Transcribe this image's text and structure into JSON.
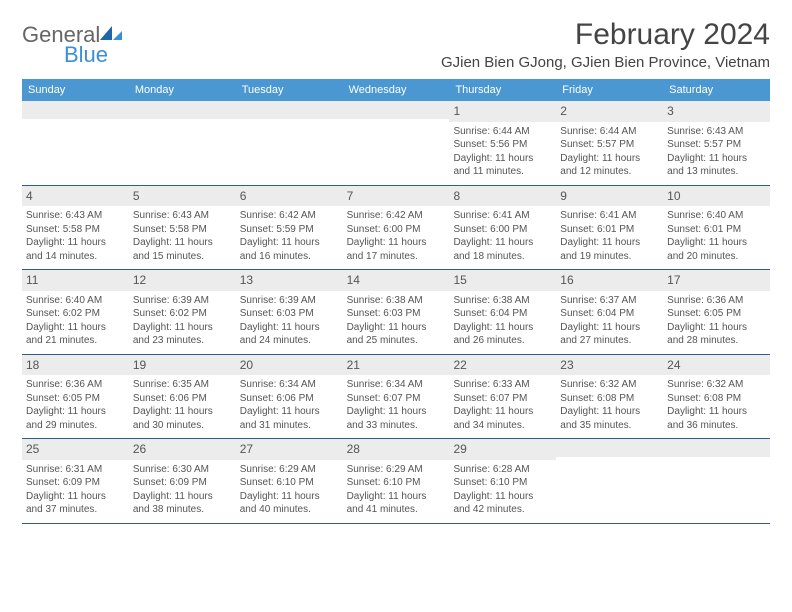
{
  "logo": {
    "part1": "General",
    "part2": "Blue"
  },
  "title": "February 2024",
  "location": "GJien Bien GJong, GJien Bien Province, Vietnam",
  "colors": {
    "header_bg": "#4a97d2",
    "header_text": "#ffffff",
    "week_divider": "#2f5e8a",
    "daynum_bg": "#ececec",
    "text": "#555555",
    "logo_gray": "#666666",
    "logo_blue": "#3b8fd4",
    "page_bg": "#ffffff"
  },
  "weekdays": [
    "Sunday",
    "Monday",
    "Tuesday",
    "Wednesday",
    "Thursday",
    "Friday",
    "Saturday"
  ],
  "weeks": [
    [
      null,
      null,
      null,
      null,
      {
        "num": "1",
        "sunrise": "Sunrise: 6:44 AM",
        "sunset": "Sunset: 5:56 PM",
        "dl1": "Daylight: 11 hours",
        "dl2": "and 11 minutes."
      },
      {
        "num": "2",
        "sunrise": "Sunrise: 6:44 AM",
        "sunset": "Sunset: 5:57 PM",
        "dl1": "Daylight: 11 hours",
        "dl2": "and 12 minutes."
      },
      {
        "num": "3",
        "sunrise": "Sunrise: 6:43 AM",
        "sunset": "Sunset: 5:57 PM",
        "dl1": "Daylight: 11 hours",
        "dl2": "and 13 minutes."
      }
    ],
    [
      {
        "num": "4",
        "sunrise": "Sunrise: 6:43 AM",
        "sunset": "Sunset: 5:58 PM",
        "dl1": "Daylight: 11 hours",
        "dl2": "and 14 minutes."
      },
      {
        "num": "5",
        "sunrise": "Sunrise: 6:43 AM",
        "sunset": "Sunset: 5:58 PM",
        "dl1": "Daylight: 11 hours",
        "dl2": "and 15 minutes."
      },
      {
        "num": "6",
        "sunrise": "Sunrise: 6:42 AM",
        "sunset": "Sunset: 5:59 PM",
        "dl1": "Daylight: 11 hours",
        "dl2": "and 16 minutes."
      },
      {
        "num": "7",
        "sunrise": "Sunrise: 6:42 AM",
        "sunset": "Sunset: 6:00 PM",
        "dl1": "Daylight: 11 hours",
        "dl2": "and 17 minutes."
      },
      {
        "num": "8",
        "sunrise": "Sunrise: 6:41 AM",
        "sunset": "Sunset: 6:00 PM",
        "dl1": "Daylight: 11 hours",
        "dl2": "and 18 minutes."
      },
      {
        "num": "9",
        "sunrise": "Sunrise: 6:41 AM",
        "sunset": "Sunset: 6:01 PM",
        "dl1": "Daylight: 11 hours",
        "dl2": "and 19 minutes."
      },
      {
        "num": "10",
        "sunrise": "Sunrise: 6:40 AM",
        "sunset": "Sunset: 6:01 PM",
        "dl1": "Daylight: 11 hours",
        "dl2": "and 20 minutes."
      }
    ],
    [
      {
        "num": "11",
        "sunrise": "Sunrise: 6:40 AM",
        "sunset": "Sunset: 6:02 PM",
        "dl1": "Daylight: 11 hours",
        "dl2": "and 21 minutes."
      },
      {
        "num": "12",
        "sunrise": "Sunrise: 6:39 AM",
        "sunset": "Sunset: 6:02 PM",
        "dl1": "Daylight: 11 hours",
        "dl2": "and 23 minutes."
      },
      {
        "num": "13",
        "sunrise": "Sunrise: 6:39 AM",
        "sunset": "Sunset: 6:03 PM",
        "dl1": "Daylight: 11 hours",
        "dl2": "and 24 minutes."
      },
      {
        "num": "14",
        "sunrise": "Sunrise: 6:38 AM",
        "sunset": "Sunset: 6:03 PM",
        "dl1": "Daylight: 11 hours",
        "dl2": "and 25 minutes."
      },
      {
        "num": "15",
        "sunrise": "Sunrise: 6:38 AM",
        "sunset": "Sunset: 6:04 PM",
        "dl1": "Daylight: 11 hours",
        "dl2": "and 26 minutes."
      },
      {
        "num": "16",
        "sunrise": "Sunrise: 6:37 AM",
        "sunset": "Sunset: 6:04 PM",
        "dl1": "Daylight: 11 hours",
        "dl2": "and 27 minutes."
      },
      {
        "num": "17",
        "sunrise": "Sunrise: 6:36 AM",
        "sunset": "Sunset: 6:05 PM",
        "dl1": "Daylight: 11 hours",
        "dl2": "and 28 minutes."
      }
    ],
    [
      {
        "num": "18",
        "sunrise": "Sunrise: 6:36 AM",
        "sunset": "Sunset: 6:05 PM",
        "dl1": "Daylight: 11 hours",
        "dl2": "and 29 minutes."
      },
      {
        "num": "19",
        "sunrise": "Sunrise: 6:35 AM",
        "sunset": "Sunset: 6:06 PM",
        "dl1": "Daylight: 11 hours",
        "dl2": "and 30 minutes."
      },
      {
        "num": "20",
        "sunrise": "Sunrise: 6:34 AM",
        "sunset": "Sunset: 6:06 PM",
        "dl1": "Daylight: 11 hours",
        "dl2": "and 31 minutes."
      },
      {
        "num": "21",
        "sunrise": "Sunrise: 6:34 AM",
        "sunset": "Sunset: 6:07 PM",
        "dl1": "Daylight: 11 hours",
        "dl2": "and 33 minutes."
      },
      {
        "num": "22",
        "sunrise": "Sunrise: 6:33 AM",
        "sunset": "Sunset: 6:07 PM",
        "dl1": "Daylight: 11 hours",
        "dl2": "and 34 minutes."
      },
      {
        "num": "23",
        "sunrise": "Sunrise: 6:32 AM",
        "sunset": "Sunset: 6:08 PM",
        "dl1": "Daylight: 11 hours",
        "dl2": "and 35 minutes."
      },
      {
        "num": "24",
        "sunrise": "Sunrise: 6:32 AM",
        "sunset": "Sunset: 6:08 PM",
        "dl1": "Daylight: 11 hours",
        "dl2": "and 36 minutes."
      }
    ],
    [
      {
        "num": "25",
        "sunrise": "Sunrise: 6:31 AM",
        "sunset": "Sunset: 6:09 PM",
        "dl1": "Daylight: 11 hours",
        "dl2": "and 37 minutes."
      },
      {
        "num": "26",
        "sunrise": "Sunrise: 6:30 AM",
        "sunset": "Sunset: 6:09 PM",
        "dl1": "Daylight: 11 hours",
        "dl2": "and 38 minutes."
      },
      {
        "num": "27",
        "sunrise": "Sunrise: 6:29 AM",
        "sunset": "Sunset: 6:10 PM",
        "dl1": "Daylight: 11 hours",
        "dl2": "and 40 minutes."
      },
      {
        "num": "28",
        "sunrise": "Sunrise: 6:29 AM",
        "sunset": "Sunset: 6:10 PM",
        "dl1": "Daylight: 11 hours",
        "dl2": "and 41 minutes."
      },
      {
        "num": "29",
        "sunrise": "Sunrise: 6:28 AM",
        "sunset": "Sunset: 6:10 PM",
        "dl1": "Daylight: 11 hours",
        "dl2": "and 42 minutes."
      },
      null,
      null
    ]
  ]
}
